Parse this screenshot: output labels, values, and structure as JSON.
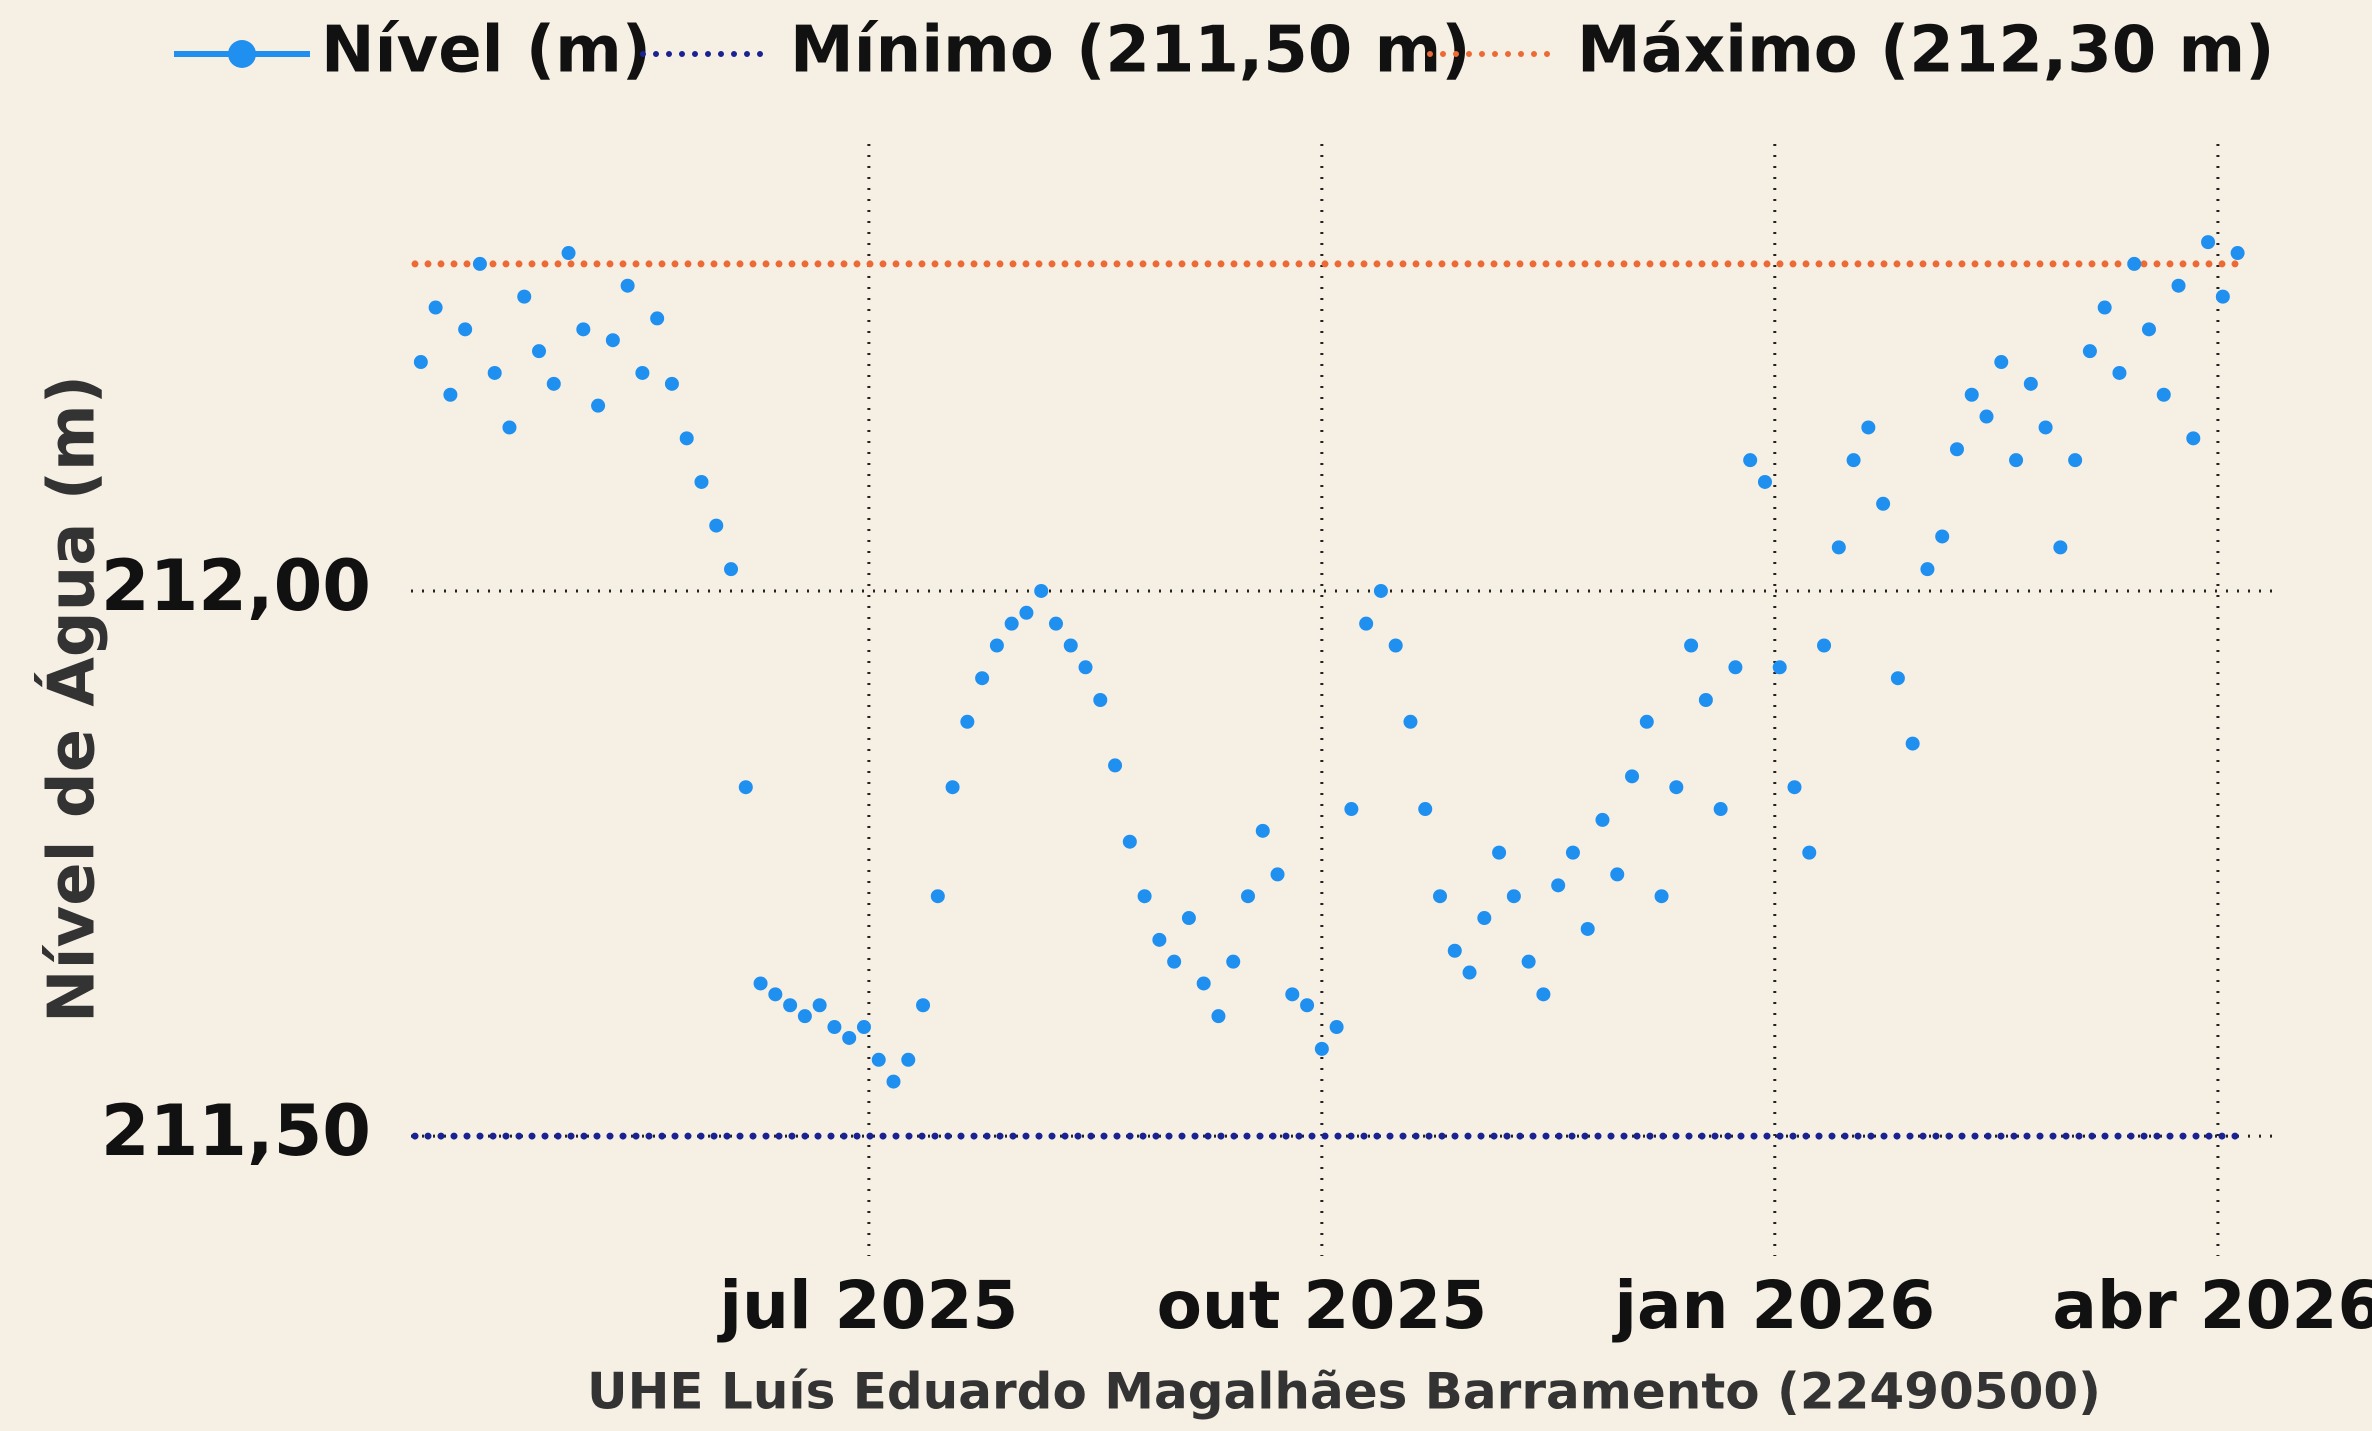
{
  "chart_data": {
    "type": "scatter",
    "x_axis_label": "UHE Luís Eduardo Magalhães Barramento (22490500)",
    "y_axis_label": "Nível de Água (m)",
    "x": [
      "2025-04-01",
      "2025-04-04",
      "2025-04-07",
      "2025-04-10",
      "2025-04-13",
      "2025-04-16",
      "2025-04-19",
      "2025-04-22",
      "2025-04-25",
      "2025-04-28",
      "2025-05-01",
      "2025-05-04",
      "2025-05-07",
      "2025-05-10",
      "2025-05-13",
      "2025-05-16",
      "2025-05-19",
      "2025-05-22",
      "2025-05-25",
      "2025-05-28",
      "2025-05-31",
      "2025-06-03",
      "2025-06-06",
      "2025-06-09",
      "2025-06-12",
      "2025-06-15",
      "2025-06-18",
      "2025-06-21",
      "2025-06-24",
      "2025-06-27",
      "2025-06-30",
      "2025-07-03",
      "2025-07-06",
      "2025-07-09",
      "2025-07-12",
      "2025-07-15",
      "2025-07-18",
      "2025-07-21",
      "2025-07-24",
      "2025-07-27",
      "2025-07-30",
      "2025-08-02",
      "2025-08-05",
      "2025-08-08",
      "2025-08-11",
      "2025-08-14",
      "2025-08-17",
      "2025-08-20",
      "2025-08-23",
      "2025-08-26",
      "2025-08-29",
      "2025-09-01",
      "2025-09-04",
      "2025-09-07",
      "2025-09-10",
      "2025-09-13",
      "2025-09-16",
      "2025-09-19",
      "2025-09-22",
      "2025-09-25",
      "2025-09-28",
      "2025-10-01",
      "2025-10-04",
      "2025-10-07",
      "2025-10-10",
      "2025-10-13",
      "2025-10-16",
      "2025-10-19",
      "2025-10-22",
      "2025-10-25",
      "2025-10-28",
      "2025-10-31",
      "2025-11-03",
      "2025-11-06",
      "2025-11-09",
      "2025-11-12",
      "2025-11-15",
      "2025-11-18",
      "2025-11-21",
      "2025-11-24",
      "2025-11-27",
      "2025-11-30",
      "2025-12-03",
      "2025-12-06",
      "2025-12-09",
      "2025-12-12",
      "2025-12-15",
      "2025-12-18",
      "2025-12-21",
      "2025-12-24",
      "2025-12-27",
      "2025-12-30",
      "2026-01-02",
      "2026-01-05",
      "2026-01-08",
      "2026-01-11",
      "2026-01-14",
      "2026-01-17",
      "2026-01-20",
      "2026-01-23",
      "2026-01-26",
      "2026-01-29",
      "2026-02-01",
      "2026-02-04",
      "2026-02-07",
      "2026-02-10",
      "2026-02-13",
      "2026-02-16",
      "2026-02-19",
      "2026-02-22",
      "2026-02-25",
      "2026-02-28",
      "2026-03-03",
      "2026-03-06",
      "2026-03-09",
      "2026-03-12",
      "2026-03-15",
      "2026-03-18",
      "2026-03-21",
      "2026-03-24",
      "2026-03-27",
      "2026-03-30",
      "2026-04-02",
      "2026-04-05"
    ],
    "series": [
      {
        "name": "Nível (m)",
        "color": "#1f8ff0",
        "values": [
          212.21,
          212.26,
          212.18,
          212.24,
          212.3,
          212.2,
          212.15,
          212.27,
          212.22,
          212.19,
          212.31,
          212.24,
          212.17,
          212.23,
          212.28,
          212.2,
          212.25,
          212.19,
          212.14,
          212.1,
          212.06,
          212.02,
          211.82,
          211.64,
          211.63,
          211.62,
          211.61,
          211.62,
          211.6,
          211.59,
          211.6,
          211.57,
          211.55,
          211.57,
          211.62,
          211.72,
          211.82,
          211.88,
          211.92,
          211.95,
          211.97,
          211.98,
          212.0,
          211.97,
          211.95,
          211.93,
          211.9,
          211.84,
          211.77,
          211.72,
          211.68,
          211.66,
          211.7,
          211.64,
          211.61,
          211.66,
          211.72,
          211.78,
          211.74,
          211.63,
          211.62,
          211.58,
          211.6,
          211.8,
          211.97,
          212.0,
          211.95,
          211.88,
          211.8,
          211.72,
          211.67,
          211.65,
          211.7,
          211.76,
          211.72,
          211.66,
          211.63,
          211.73,
          211.76,
          211.69,
          211.79,
          211.74,
          211.83,
          211.88,
          211.72,
          211.82,
          211.95,
          211.9,
          211.8,
          211.93,
          212.12,
          212.1,
          211.93,
          211.82,
          211.76,
          211.95,
          212.04,
          212.12,
          212.15,
          212.08,
          211.92,
          211.86,
          212.02,
          212.05,
          212.13,
          212.18,
          212.16,
          212.21,
          212.12,
          212.19,
          212.15,
          212.04,
          212.12,
          212.22,
          212.26,
          212.2,
          212.3,
          212.24,
          212.18,
          212.28,
          212.14,
          212.32,
          212.27,
          212.31
        ]
      }
    ],
    "reference_lines": [
      {
        "name": "Mínimo (211,50 m)",
        "color": "#1a2190",
        "value": 211.5
      },
      {
        "name": "Máximo (212,30 m)",
        "color": "#ec6a35",
        "value": 212.3
      }
    ],
    "xlim": [
      "2025-03-30",
      "2026-04-13"
    ],
    "xticks": [
      {
        "value": "2025-07-01",
        "label": "jul 2025"
      },
      {
        "value": "2025-10-01",
        "label": "out 2025"
      },
      {
        "value": "2026-01-01",
        "label": "jan 2026"
      },
      {
        "value": "2026-04-01",
        "label": "abr 2026"
      }
    ],
    "ylim": [
      211.39,
      212.41
    ],
    "yticks": [
      {
        "value": 211.5,
        "label": "211,50"
      },
      {
        "value": 212,
        "label": "212,00"
      }
    ],
    "grid": true,
    "legend": "top"
  }
}
